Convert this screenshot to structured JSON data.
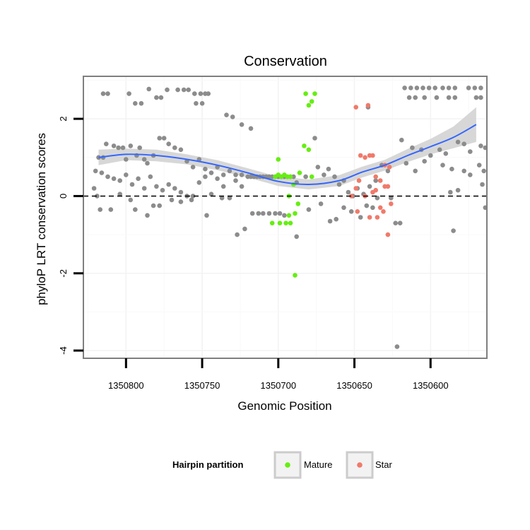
{
  "chart_data": {
    "type": "scatter",
    "title": "Conservation",
    "xlabel": "Genomic Position",
    "ylabel": "phyloP LRT conservation scores",
    "x_reversed": true,
    "xlim": [
      1350828,
      1350563
    ],
    "ylim": [
      -4.2,
      3.1
    ],
    "x_ticks": [
      1350800,
      1350750,
      1350700,
      1350650,
      1350600
    ],
    "y_ticks": [
      2,
      0,
      -2,
      -4
    ],
    "hline": 0,
    "grid": true,
    "legend": {
      "title": "Hairpin partition",
      "position": "bottom",
      "entries": [
        {
          "name": "Mature",
          "color": "#66ee11"
        },
        {
          "name": "Star",
          "color": "#f07a6a"
        }
      ]
    },
    "colors": {
      "other": "#8c8c8c",
      "Mature": "#66ee11",
      "Star": "#f07a6a",
      "smooth": "#3366ff",
      "ribbon": "#d0d0d0"
    },
    "series": [
      {
        "name": "Other",
        "points": [
          [
            1350815,
            2.65
          ],
          [
            1350812,
            2.65
          ],
          [
            1350798,
            2.65
          ],
          [
            1350794,
            2.4
          ],
          [
            1350790,
            2.4
          ],
          [
            1350785,
            2.77
          ],
          [
            1350780,
            2.55
          ],
          [
            1350777,
            2.55
          ],
          [
            1350773,
            2.75
          ],
          [
            1350766,
            2.75
          ],
          [
            1350762,
            2.75
          ],
          [
            1350759,
            2.75
          ],
          [
            1350755,
            2.65
          ],
          [
            1350751,
            2.65
          ],
          [
            1350748,
            2.65
          ],
          [
            1350746,
            2.65
          ],
          [
            1350754,
            2.4
          ],
          [
            1350750,
            2.4
          ],
          [
            1350734,
            2.1
          ],
          [
            1350730,
            2.05
          ],
          [
            1350724,
            1.85
          ],
          [
            1350718,
            1.75
          ],
          [
            1350818,
            1.0
          ],
          [
            1350815,
            1.0
          ],
          [
            1350813,
            1.35
          ],
          [
            1350808,
            1.3
          ],
          [
            1350805,
            1.25
          ],
          [
            1350802,
            1.25
          ],
          [
            1350800,
            0.95
          ],
          [
            1350797,
            1.3
          ],
          [
            1350793,
            1.05
          ],
          [
            1350791,
            1.25
          ],
          [
            1350788,
            0.95
          ],
          [
            1350786,
            0.85
          ],
          [
            1350782,
            1.05
          ],
          [
            1350778,
            1.5
          ],
          [
            1350775,
            1.5
          ],
          [
            1350772,
            1.35
          ],
          [
            1350768,
            1.25
          ],
          [
            1350764,
            1.2
          ],
          [
            1350760,
            0.9
          ],
          [
            1350756,
            0.75
          ],
          [
            1350752,
            0.95
          ],
          [
            1350748,
            0.7
          ],
          [
            1350744,
            0.6
          ],
          [
            1350740,
            0.75
          ],
          [
            1350736,
            0.55
          ],
          [
            1350732,
            0.65
          ],
          [
            1350728,
            0.55
          ],
          [
            1350724,
            0.55
          ],
          [
            1350820,
            0.65
          ],
          [
            1350816,
            0.6
          ],
          [
            1350812,
            0.5
          ],
          [
            1350808,
            0.45
          ],
          [
            1350804,
            0.4
          ],
          [
            1350800,
            0.55
          ],
          [
            1350796,
            0.3
          ],
          [
            1350792,
            0.45
          ],
          [
            1350788,
            0.2
          ],
          [
            1350784,
            0.5
          ],
          [
            1350780,
            0.25
          ],
          [
            1350776,
            0.15
          ],
          [
            1350772,
            0.3
          ],
          [
            1350768,
            0.2
          ],
          [
            1350764,
            0.1
          ],
          [
            1350760,
            0.0
          ],
          [
            1350756,
            0.0
          ],
          [
            1350752,
            0.35
          ],
          [
            1350748,
            0.5
          ],
          [
            1350744,
            0.05
          ],
          [
            1350740,
            0.45
          ],
          [
            1350736,
            0.25
          ],
          [
            1350732,
            -0.05
          ],
          [
            1350728,
            0.4
          ],
          [
            1350724,
            0.25
          ],
          [
            1350821,
            0.2
          ],
          [
            1350819,
            0.0
          ],
          [
            1350817,
            -0.35
          ],
          [
            1350810,
            -0.35
          ],
          [
            1350804,
            0.05
          ],
          [
            1350797,
            -0.1
          ],
          [
            1350794,
            -0.35
          ],
          [
            1350786,
            -0.5
          ],
          [
            1350782,
            -0.25
          ],
          [
            1350778,
            -0.25
          ],
          [
            1350770,
            -0.1
          ],
          [
            1350764,
            -0.15
          ],
          [
            1350757,
            -0.1
          ],
          [
            1350747,
            -0.5
          ],
          [
            1350737,
            -0.05
          ],
          [
            1350727,
            -1.0
          ],
          [
            1350722,
            -0.85
          ],
          [
            1350720,
            0.5
          ],
          [
            1350718,
            0.5
          ],
          [
            1350716,
            0.5
          ],
          [
            1350714,
            0.5
          ],
          [
            1350712,
            0.5
          ],
          [
            1350710,
            0.5
          ],
          [
            1350708,
            0.5
          ],
          [
            1350706,
            0.5
          ],
          [
            1350704,
            0.5
          ],
          [
            1350702,
            0.5
          ],
          [
            1350700,
            0.5
          ],
          [
            1350698,
            0.5
          ],
          [
            1350696,
            0.5
          ],
          [
            1350694,
            0.5
          ],
          [
            1350692,
            0.5
          ],
          [
            1350690,
            0.5
          ],
          [
            1350717,
            -0.45
          ],
          [
            1350713,
            -0.45
          ],
          [
            1350710,
            -0.45
          ],
          [
            1350706,
            -0.45
          ],
          [
            1350702,
            -0.45
          ],
          [
            1350699,
            -0.45
          ],
          [
            1350696,
            -0.5
          ],
          [
            1350688,
            0.35
          ],
          [
            1350682,
            0.5
          ],
          [
            1350676,
            1.5
          ],
          [
            1350674,
            0.75
          ],
          [
            1350670,
            0.55
          ],
          [
            1350667,
            0.7
          ],
          [
            1350663,
            0.5
          ],
          [
            1350660,
            0.3
          ],
          [
            1350657,
            0.4
          ],
          [
            1350654,
            0.1
          ],
          [
            1350651,
            0.0
          ],
          [
            1350648,
            0.2
          ],
          [
            1350644,
            0.05
          ],
          [
            1350640,
            0.25
          ],
          [
            1350636,
            0.4
          ],
          [
            1350632,
            0.8
          ],
          [
            1350628,
            0.65
          ],
          [
            1350688,
            -1.05
          ],
          [
            1350680,
            -0.35
          ],
          [
            1350672,
            -0.2
          ],
          [
            1350666,
            -0.65
          ],
          [
            1350662,
            -0.6
          ],
          [
            1350657,
            -0.3
          ],
          [
            1350652,
            -0.4
          ],
          [
            1350646,
            -0.55
          ],
          [
            1350642,
            -0.25
          ],
          [
            1350638,
            -0.3
          ],
          [
            1350635,
            -0.05
          ],
          [
            1350626,
            -0.05
          ],
          [
            1350623,
            -0.7
          ],
          [
            1350641,
            2.3
          ],
          [
            1350617,
            2.8
          ],
          [
            1350613,
            2.8
          ],
          [
            1350609,
            2.8
          ],
          [
            1350605,
            2.8
          ],
          [
            1350601,
            2.8
          ],
          [
            1350597,
            2.8
          ],
          [
            1350592,
            2.8
          ],
          [
            1350588,
            2.8
          ],
          [
            1350584,
            2.8
          ],
          [
            1350575,
            2.8
          ],
          [
            1350571,
            2.8
          ],
          [
            1350567,
            2.8
          ],
          [
            1350614,
            2.55
          ],
          [
            1350610,
            2.55
          ],
          [
            1350604,
            2.55
          ],
          [
            1350596,
            2.55
          ],
          [
            1350588,
            2.55
          ],
          [
            1350584,
            2.55
          ],
          [
            1350570,
            2.55
          ],
          [
            1350567,
            2.55
          ],
          [
            1350619,
            1.45
          ],
          [
            1350612,
            1.25
          ],
          [
            1350606,
            1.2
          ],
          [
            1350600,
            1.05
          ],
          [
            1350594,
            1.2
          ],
          [
            1350590,
            1.1
          ],
          [
            1350582,
            1.4
          ],
          [
            1350578,
            1.35
          ],
          [
            1350574,
            1.15
          ],
          [
            1350567,
            1.3
          ],
          [
            1350564,
            1.25
          ],
          [
            1350616,
            0.85
          ],
          [
            1350610,
            0.65
          ],
          [
            1350604,
            0.9
          ],
          [
            1350592,
            0.8
          ],
          [
            1350586,
            0.7
          ],
          [
            1350578,
            0.65
          ],
          [
            1350574,
            0.55
          ],
          [
            1350568,
            0.8
          ],
          [
            1350566,
            0.3
          ],
          [
            1350582,
            0.15
          ],
          [
            1350587,
            0.1
          ],
          [
            1350565,
            0.65
          ],
          [
            1350620,
            -0.7
          ],
          [
            1350585,
            -0.9
          ],
          [
            1350564,
            -0.3
          ],
          [
            1350622,
            -3.9
          ]
        ]
      },
      {
        "name": "Mature",
        "points": [
          [
            1350702,
            0.5
          ],
          [
            1350700,
            0.55
          ],
          [
            1350698,
            0.5
          ],
          [
            1350696,
            0.55
          ],
          [
            1350694,
            0.5
          ],
          [
            1350692,
            0.5
          ],
          [
            1350700,
            0.95
          ],
          [
            1350682,
            2.65
          ],
          [
            1350680,
            2.35
          ],
          [
            1350678,
            2.45
          ],
          [
            1350676,
            2.65
          ],
          [
            1350683,
            1.3
          ],
          [
            1350680,
            1.2
          ],
          [
            1350686,
            0.6
          ],
          [
            1350678,
            0.5
          ],
          [
            1350693,
            0.0
          ],
          [
            1350690,
            0.3
          ],
          [
            1350687,
            -0.2
          ],
          [
            1350693,
            -0.5
          ],
          [
            1350689,
            -0.45
          ],
          [
            1350704,
            -0.7
          ],
          [
            1350699,
            -0.7
          ],
          [
            1350695,
            -0.7
          ],
          [
            1350692,
            -0.7
          ],
          [
            1350689,
            -2.05
          ]
        ]
      },
      {
        "name": "Star",
        "points": [
          [
            1350649,
            2.3
          ],
          [
            1350641,
            2.35
          ],
          [
            1350646,
            1.05
          ],
          [
            1350643,
            1.0
          ],
          [
            1350640,
            1.05
          ],
          [
            1350638,
            1.05
          ],
          [
            1350630,
            0.8
          ],
          [
            1350627,
            0.75
          ],
          [
            1350636,
            0.5
          ],
          [
            1350633,
            0.4
          ],
          [
            1350647,
            0.4
          ],
          [
            1350649,
            0.2
          ],
          [
            1350638,
            0.1
          ],
          [
            1350636,
            0.15
          ],
          [
            1350630,
            0.25
          ],
          [
            1350628,
            0.25
          ],
          [
            1350643,
            0.0
          ],
          [
            1350652,
            0.0
          ],
          [
            1350626,
            -0.2
          ],
          [
            1350633,
            -0.3
          ],
          [
            1350648,
            -0.4
          ],
          [
            1350640,
            -0.55
          ],
          [
            1350635,
            -0.55
          ],
          [
            1350631,
            -0.4
          ],
          [
            1350628,
            -1.0
          ]
        ]
      }
    ],
    "smooth": {
      "x": [
        1350818,
        1350800,
        1350780,
        1350760,
        1350740,
        1350720,
        1350700,
        1350680,
        1350660,
        1350645,
        1350630,
        1350615,
        1350600,
        1350585,
        1350570
      ],
      "y": [
        1.0,
        1.08,
        1.05,
        0.95,
        0.8,
        0.6,
        0.38,
        0.3,
        0.4,
        0.62,
        0.8,
        1.05,
        1.28,
        1.52,
        1.85
      ],
      "ribbon_half_width": [
        0.2,
        0.15,
        0.15,
        0.13,
        0.13,
        0.12,
        0.12,
        0.13,
        0.14,
        0.14,
        0.14,
        0.17,
        0.2,
        0.28,
        0.45
      ]
    }
  }
}
